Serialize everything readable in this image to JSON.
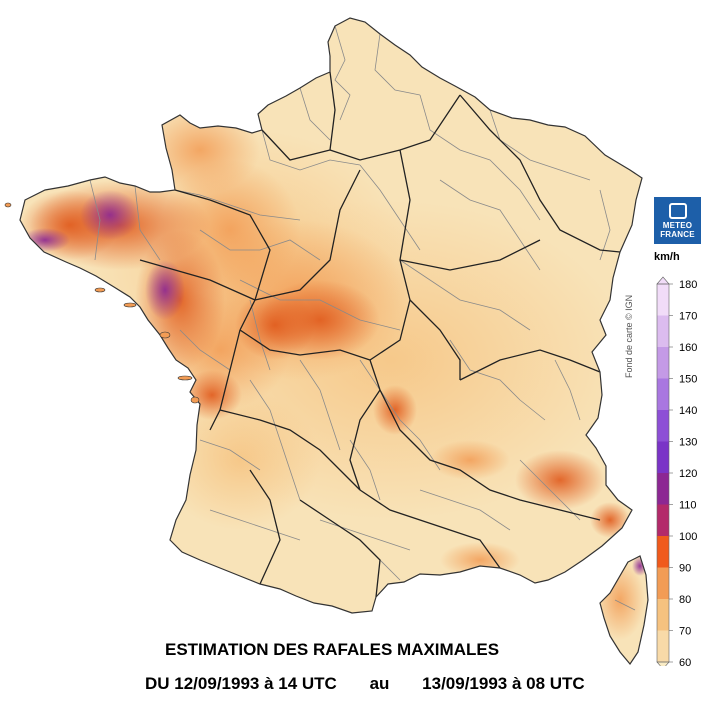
{
  "logo": {
    "line1": "METEO",
    "line2": "FRANCE"
  },
  "legend": {
    "unit": "km/h",
    "values": [
      "180",
      "170",
      "160",
      "150",
      "140",
      "130",
      "120",
      "110",
      "100",
      "90",
      "80",
      "70",
      "60"
    ],
    "colors": [
      "#f1dcf8",
      "#dcbcef",
      "#c49ae6",
      "#a977e0",
      "#8d4fd6",
      "#7a34c7",
      "#8c2793",
      "#b32a6a",
      "#f05a1c",
      "#f29c55",
      "#f6c27f",
      "#f8daa8",
      "#faecc5"
    ]
  },
  "credit": "Fond de carte © IGN",
  "title": {
    "line1": "ESTIMATION DES RAFALES MAXIMALES",
    "from": "DU 12/09/1993 à 14 UTC",
    "au": "au",
    "to": "13/09/1993 à 08 UTC"
  },
  "map": {
    "region": "France"
  }
}
